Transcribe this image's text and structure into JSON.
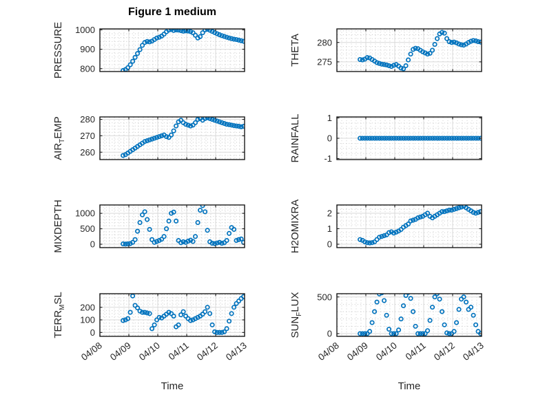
{
  "chart_data": {
    "type": "scatter",
    "figure_title": "Figure 1 medium",
    "xlabel": "Time",
    "x_tick_labels": [
      "04/08",
      "04/09",
      "04/10",
      "04/11",
      "04/12",
      "04/13"
    ],
    "x_range_days": [
      0,
      5
    ],
    "x_start": 0.8,
    "x_step_days": 0.08333,
    "marker": {
      "shape": "open-circle",
      "color": "#0072BD"
    },
    "grid": {
      "major": true,
      "minor": true
    },
    "text_color": "#262626",
    "subplots": [
      {
        "id": "pressure",
        "label_parts": [
          {
            "text": "PRESSURE"
          }
        ],
        "yticks": [
          800,
          900,
          1000
        ],
        "ylim": [
          785,
          1005
        ],
        "minor_y_step": 20,
        "values": [
          790,
          795,
          805,
          820,
          838,
          858,
          878,
          898,
          920,
          935,
          940,
          938,
          942,
          950,
          958,
          962,
          968,
          978,
          990,
          999,
          1002,
          997,
          1000,
          999,
          996,
          993,
          995,
          994,
          991,
          985,
          972,
          958,
          965,
          985,
          1000,
          1003,
          998,
          992,
          986,
          980,
          975,
          970,
          966,
          962,
          958,
          955,
          952,
          950,
          947,
          944,
          941
        ]
      },
      {
        "id": "theta",
        "label_parts": [
          {
            "text": "THETA"
          }
        ],
        "yticks": [
          275,
          280
        ],
        "ylim": [
          272.5,
          283.5
        ],
        "minor_y_step": 1,
        "values": [
          275.6,
          275.5,
          275.7,
          276.1,
          276.0,
          275.6,
          275.2,
          274.8,
          274.6,
          274.4,
          274.3,
          274.2,
          274.0,
          273.8,
          274.1,
          274.3,
          273.9,
          273.4,
          273.2,
          274.0,
          275.5,
          277.0,
          278.2,
          278.5,
          278.4,
          278.0,
          277.6,
          277.3,
          277.0,
          277.2,
          278.0,
          279.5,
          281.0,
          282.2,
          282.6,
          282.4,
          281.0,
          280.2,
          280.0,
          280.1,
          279.9,
          279.6,
          279.4,
          279.3,
          279.6,
          280.0,
          280.3,
          280.5,
          280.4,
          280.2,
          280.1
        ]
      },
      {
        "id": "air_temp",
        "label_parts": [
          {
            "text": "AIR"
          },
          {
            "sub": "T"
          },
          {
            "text": "EMP"
          }
        ],
        "yticks": [
          260,
          270,
          280
        ],
        "ylim": [
          255.5,
          281.5
        ],
        "minor_y_step": 2,
        "values": [
          258.0,
          258.5,
          259.5,
          260.5,
          261.5,
          262.5,
          263.5,
          264.5,
          265.5,
          266.5,
          267.0,
          267.5,
          268.0,
          268.5,
          269.0,
          269.5,
          270.0,
          270.5,
          269.5,
          269.0,
          270.5,
          273.0,
          276.0,
          278.5,
          279.5,
          278.0,
          277.0,
          276.5,
          276.0,
          276.5,
          278.0,
          280.0,
          280.5,
          279.5,
          280.5,
          281.0,
          280.5,
          280.0,
          279.5,
          279.0,
          278.5,
          278.0,
          277.5,
          277.0,
          276.8,
          276.5,
          276.2,
          276.0,
          275.8,
          275.5,
          275.8
        ]
      },
      {
        "id": "rainfall",
        "label_parts": [
          {
            "text": "RAINFALL"
          }
        ],
        "yticks": [
          -1,
          0,
          1
        ],
        "ylim": [
          -1.05,
          1.05
        ],
        "minor_y_step": 0.25,
        "values": [
          0,
          0,
          0,
          0,
          0,
          0,
          0,
          0,
          0,
          0,
          0,
          0,
          0,
          0,
          0,
          0,
          0,
          0,
          0,
          0,
          0,
          0,
          0,
          0,
          0,
          0,
          0,
          0,
          0,
          0,
          0,
          0,
          0,
          0,
          0,
          0,
          0,
          0,
          0,
          0,
          0,
          0,
          0,
          0,
          0,
          0,
          0,
          0,
          0,
          0,
          0
        ]
      },
      {
        "id": "mixdepth",
        "label_parts": [
          {
            "text": "MIXDEPTH"
          }
        ],
        "yticks": [
          0,
          500,
          1000
        ],
        "ylim": [
          -110,
          1270
        ],
        "minor_y_step": 100,
        "values": [
          10,
          5,
          10,
          20,
          60,
          150,
          420,
          700,
          950,
          1050,
          800,
          480,
          150,
          60,
          90,
          120,
          160,
          250,
          500,
          750,
          1000,
          1040,
          750,
          120,
          50,
          80,
          60,
          100,
          130,
          90,
          250,
          700,
          1100,
          1250,
          1050,
          450,
          80,
          30,
          20,
          40,
          60,
          30,
          50,
          120,
          350,
          540,
          480,
          120,
          150,
          170,
          60
        ]
      },
      {
        "id": "h2omixra",
        "label_parts": [
          {
            "text": "H2OMIXRA"
          }
        ],
        "yticks": [
          0,
          1,
          2
        ],
        "ylim": [
          -0.22,
          2.53
        ],
        "minor_y_step": 0.25,
        "values": [
          0.3,
          0.25,
          0.15,
          0.1,
          0.08,
          0.1,
          0.15,
          0.3,
          0.45,
          0.5,
          0.55,
          0.6,
          0.75,
          0.8,
          0.72,
          0.78,
          0.85,
          0.95,
          1.1,
          1.2,
          1.3,
          1.5,
          1.55,
          1.6,
          1.7,
          1.75,
          1.8,
          1.9,
          2.0,
          1.8,
          1.7,
          1.8,
          1.9,
          2.0,
          2.1,
          2.1,
          2.15,
          2.2,
          2.2,
          2.25,
          2.3,
          2.35,
          2.4,
          2.45,
          2.35,
          2.25,
          2.15,
          2.05,
          2.0,
          2.05,
          2.1
        ]
      },
      {
        "id": "terr_msl",
        "label_parts": [
          {
            "text": "TERR"
          },
          {
            "sub": "M"
          },
          {
            "text": "SL"
          }
        ],
        "yticks": [
          0,
          100,
          200
        ],
        "ylim": [
          -31,
          308
        ],
        "minor_y_step": 25,
        "values": [
          95,
          100,
          110,
          160,
          290,
          215,
          195,
          170,
          160,
          160,
          155,
          150,
          30,
          60,
          100,
          120,
          115,
          130,
          145,
          160,
          150,
          130,
          45,
          60,
          140,
          165,
          130,
          110,
          95,
          100,
          110,
          120,
          130,
          145,
          165,
          200,
          150,
          60,
          5,
          0,
          0,
          0,
          5,
          30,
          90,
          150,
          200,
          230,
          250,
          270,
          285
        ]
      },
      {
        "id": "sun_flux",
        "label_parts": [
          {
            "text": "SUN"
          },
          {
            "sub": "F"
          },
          {
            "text": "LUX"
          }
        ],
        "yticks": [
          0,
          500
        ],
        "ylim": [
          -37,
          544
        ],
        "minor_y_step": 100,
        "values": [
          0,
          0,
          0,
          0,
          30,
          150,
          300,
          430,
          540,
          555,
          450,
          250,
          60,
          0,
          0,
          0,
          50,
          200,
          380,
          520,
          560,
          480,
          300,
          100,
          0,
          0,
          0,
          0,
          40,
          180,
          360,
          500,
          545,
          470,
          300,
          120,
          10,
          0,
          0,
          30,
          150,
          330,
          470,
          500,
          430,
          330,
          360,
          250,
          120,
          30,
          0
        ]
      }
    ]
  }
}
